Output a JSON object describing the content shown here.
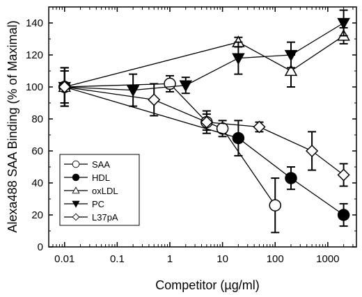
{
  "chart_data": {
    "type": "scatter",
    "xlabel": "Competitor (µg/ml)",
    "ylabel": "Alexa488 SAA Binding (% of Maximal)",
    "xscale": "log",
    "xlim": [
      0.005,
      3500
    ],
    "ylim": [
      0,
      150
    ],
    "xticks": [
      0.01,
      0.1,
      1,
      10,
      100,
      1000
    ],
    "xtick_labels": [
      "0.01",
      "0.1",
      "1",
      "10",
      "100",
      "1000"
    ],
    "yticks": [
      0,
      20,
      40,
      60,
      80,
      100,
      120,
      140
    ],
    "ytick_labels": [
      "0",
      "20",
      "40",
      "60",
      "80",
      "100",
      "120",
      "140"
    ],
    "grid": false,
    "legend_position": "bottom-left",
    "series": [
      {
        "name": "SAA",
        "marker": "circle-open",
        "x": [
          0.01,
          1,
          5,
          10,
          100
        ],
        "y": [
          100,
          102,
          78,
          74,
          26
        ],
        "err": [
          12,
          5,
          5,
          5,
          17
        ]
      },
      {
        "name": "HDL",
        "marker": "circle-filled",
        "x": [
          0.01,
          20,
          200,
          2000
        ],
        "y": [
          100,
          68,
          43,
          20
        ],
        "err": [
          12,
          11,
          7,
          7
        ]
      },
      {
        "name": "oxLDL",
        "marker": "triangle-up-open",
        "x": [
          0.01,
          20,
          200,
          2000
        ],
        "y": [
          100,
          128,
          110,
          132
        ],
        "err": [
          10,
          3,
          10,
          5
        ]
      },
      {
        "name": "PC",
        "marker": "triangle-down-filled",
        "x": [
          0.01,
          0.2,
          2,
          20,
          200,
          2000
        ],
        "y": [
          100,
          98,
          101,
          118,
          120,
          140
        ],
        "err": [
          10,
          10,
          5,
          10,
          8,
          8
        ]
      },
      {
        "name": "L37pA",
        "marker": "diamond-open",
        "x": [
          0.01,
          0.5,
          5,
          50,
          500,
          2000
        ],
        "y": [
          100,
          92,
          78,
          75,
          60,
          45
        ],
        "err": [
          10,
          10,
          7,
          3,
          12,
          7
        ]
      }
    ]
  }
}
